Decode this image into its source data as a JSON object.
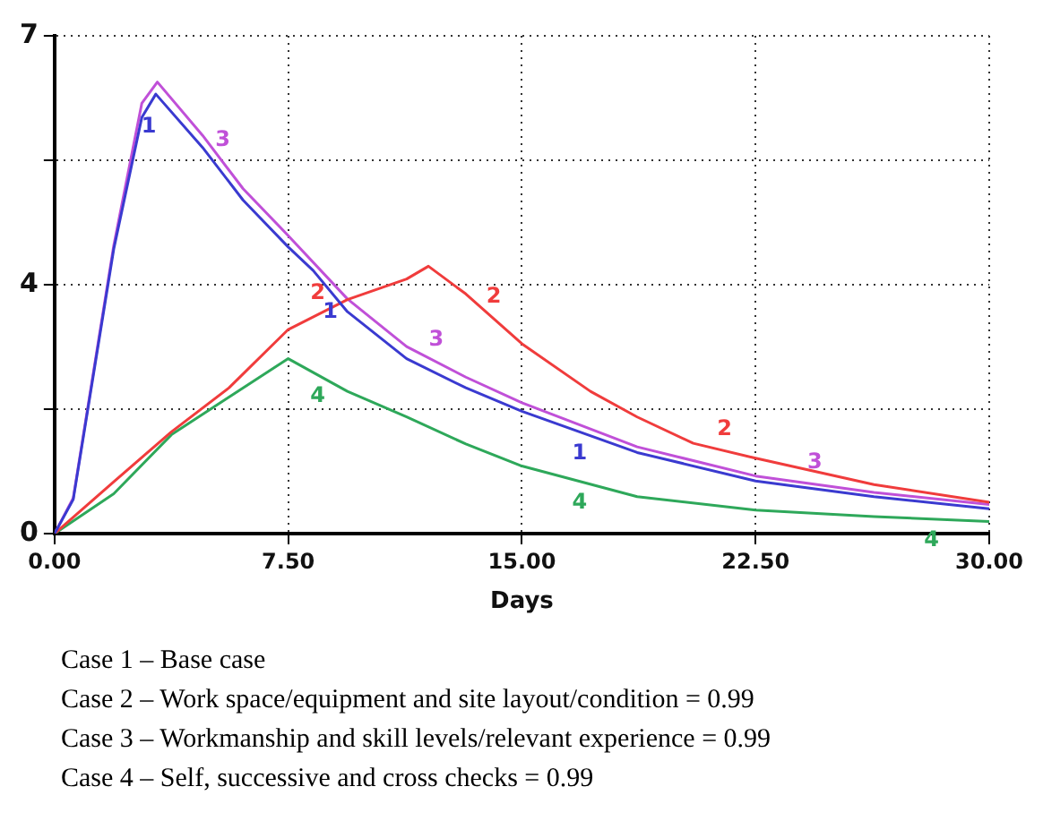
{
  "chart_data": {
    "type": "line",
    "xlabel": "Days",
    "xlim": [
      0,
      30
    ],
    "xticks": [
      {
        "value": 0,
        "label": "0.00"
      },
      {
        "value": 7.5,
        "label": "7.50"
      },
      {
        "value": 15,
        "label": "15.00"
      },
      {
        "value": 22.5,
        "label": "22.50"
      },
      {
        "value": 30,
        "label": "30.00"
      }
    ],
    "ylim": [
      0,
      7
    ],
    "yticks": [
      0,
      {
        "value": 1.75,
        "label": null
      },
      {
        "value": 3.5,
        "label": "4"
      },
      {
        "value": 5.25,
        "label": null
      },
      7
    ],
    "grid": true,
    "legend": false,
    "marker": "none",
    "line_style": "solid",
    "series": [
      {
        "name": "1",
        "color": "#3a3ad0",
        "x": [
          0,
          0.6,
          1.9,
          2.8,
          3.25,
          4.75,
          6.05,
          7.5,
          8.3,
          9.4,
          11.3,
          13.2,
          15,
          18.7,
          22.5,
          26.3,
          30
        ],
        "values": [
          0,
          0.48,
          4.0,
          5.85,
          6.18,
          5.43,
          4.69,
          4.03,
          3.7,
          3.12,
          2.46,
          2.05,
          1.72,
          1.14,
          0.74,
          0.52,
          0.35
        ]
      },
      {
        "name": "2",
        "color": "#f03c3c",
        "x": [
          0,
          1.9,
          3.75,
          5.6,
          7.5,
          9.4,
          11.3,
          12,
          13.2,
          15,
          17.2,
          18.7,
          20.5,
          22.5,
          26.3,
          30
        ],
        "values": [
          0,
          0.73,
          1.43,
          2.05,
          2.87,
          3.29,
          3.58,
          3.76,
          3.37,
          2.67,
          2.0,
          1.64,
          1.27,
          1.06,
          0.69,
          0.44
        ]
      },
      {
        "name": "3",
        "color": "#c050d8",
        "x": [
          0,
          0.6,
          1.9,
          2.8,
          3.3,
          4.75,
          6.05,
          7.5,
          9.4,
          11.3,
          13.2,
          15,
          18.7,
          22.5,
          26.3,
          30
        ],
        "values": [
          0,
          0.5,
          4.05,
          6.05,
          6.35,
          5.6,
          4.85,
          4.19,
          3.3,
          2.63,
          2.2,
          1.84,
          1.22,
          0.81,
          0.58,
          0.41
        ]
      },
      {
        "name": "4",
        "color": "#2ea85a",
        "x": [
          0,
          1.9,
          3.75,
          5.6,
          7.5,
          9.4,
          11.3,
          13.2,
          15,
          18.7,
          22.5,
          26.3,
          30
        ],
        "values": [
          0,
          0.56,
          1.39,
          1.92,
          2.46,
          2.0,
          1.64,
          1.26,
          0.95,
          0.52,
          0.33,
          0.24,
          0.17
        ]
      }
    ],
    "annotations": [
      "Case 1 – Base case",
      "Case 2 – Work space/equipment and site layout/condition = 0.99",
      "Case 3 – Workmanship and skill levels/relevant experience = 0.99",
      "Case 4 – Self, successive and cross checks = 0.99"
    ]
  }
}
